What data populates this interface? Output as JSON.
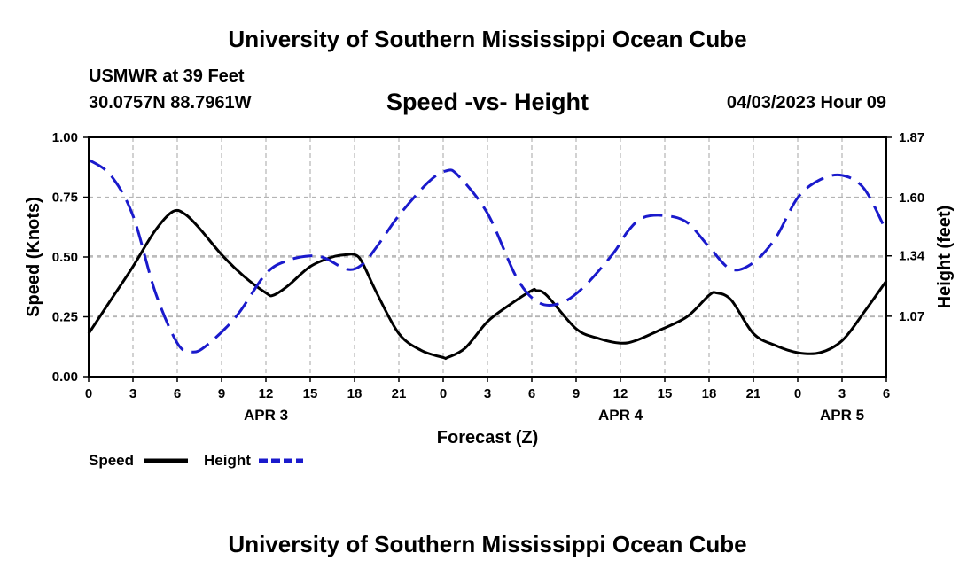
{
  "header": {
    "main_title": "University of Southern Mississippi Ocean Cube",
    "station": "USMWR at 39 Feet",
    "coords": "30.0757N  88.7961W",
    "chart_title": "Speed -vs- Height",
    "date": "04/03/2023 Hour 09",
    "bottom_title": "University of Southern Mississippi Ocean Cube"
  },
  "chart_data": {
    "type": "line",
    "title": "Speed -vs- Height",
    "xlabel": "Forecast (Z)",
    "ylabel": "Speed (Knots)",
    "y2label": "Height (feet)",
    "xlim": [
      0,
      54
    ],
    "ylim": [
      0,
      1
    ],
    "y2lim": [
      0.8,
      1.87
    ],
    "x_ticks": [
      0,
      3,
      6,
      9,
      12,
      15,
      18,
      21,
      24,
      27,
      30,
      33,
      36,
      39,
      42,
      45,
      48,
      51,
      54
    ],
    "x_tick_labels": [
      "0",
      "3",
      "6",
      "9",
      "12",
      "15",
      "18",
      "21",
      "0",
      "3",
      "6",
      "9",
      "12",
      "15",
      "18",
      "21",
      "0",
      "3",
      "6"
    ],
    "y_ticks": [
      0,
      0.25,
      0.5,
      0.75,
      1.0
    ],
    "y_tick_labels": [
      "0.00",
      "0.25",
      "0.50",
      "0.75",
      "1.00"
    ],
    "y2_ticks": [
      1.07,
      1.34,
      1.6,
      1.87
    ],
    "y2_tick_labels": [
      "1.07",
      "1.34",
      "1.60",
      "1.87"
    ],
    "date_labels": [
      {
        "x": 12,
        "label": "APR 3"
      },
      {
        "x": 36,
        "label": "APR 4"
      },
      {
        "x": 51,
        "label": "APR 5"
      }
    ],
    "grid": true,
    "legend_position": "bottom-left",
    "colors": {
      "speed": "#000000",
      "height": "#1a1acc",
      "grid": "#b4b4b4"
    },
    "series": [
      {
        "name": "Speed",
        "axis": "left",
        "style": "solid",
        "x": [
          0,
          1.5,
          3,
          4.5,
          5.7,
          6.5,
          7.5,
          9,
          10.5,
          12,
          12.5,
          13.5,
          15,
          16.5,
          17.5,
          18,
          18.5,
          19.5,
          21,
          22.5,
          24,
          24.3,
          25.5,
          27,
          28.5,
          30,
          30.3,
          31,
          33,
          34.5,
          36,
          37,
          38.5,
          40.5,
          42,
          42.5,
          43.5,
          45,
          46.5,
          48,
          49.5,
          51,
          52.5,
          54
        ],
        "values": [
          0.18,
          0.32,
          0.46,
          0.61,
          0.69,
          0.68,
          0.62,
          0.51,
          0.42,
          0.35,
          0.34,
          0.38,
          0.46,
          0.5,
          0.51,
          0.51,
          0.48,
          0.35,
          0.18,
          0.11,
          0.08,
          0.08,
          0.12,
          0.23,
          0.3,
          0.36,
          0.36,
          0.34,
          0.2,
          0.16,
          0.14,
          0.15,
          0.19,
          0.25,
          0.34,
          0.35,
          0.32,
          0.18,
          0.13,
          0.1,
          0.1,
          0.15,
          0.27,
          0.4
        ]
      },
      {
        "name": "Height",
        "axis": "right",
        "style": "dashed",
        "x": [
          0,
          1.5,
          3,
          4.5,
          6,
          7,
          8,
          10,
          12,
          13.5,
          15,
          16,
          17.5,
          18.5,
          19.5,
          21,
          23,
          24.2,
          25,
          27,
          29,
          30.5,
          32,
          33.5,
          35.5,
          36.5,
          37.5,
          39,
          40.5,
          42,
          43.5,
          45,
          46.5,
          48,
          49.5,
          51,
          52.5,
          54
        ],
        "values": [
          1.77,
          1.7,
          1.52,
          1.18,
          0.95,
          0.91,
          0.94,
          1.07,
          1.26,
          1.32,
          1.34,
          1.33,
          1.28,
          1.3,
          1.38,
          1.52,
          1.67,
          1.72,
          1.7,
          1.53,
          1.24,
          1.13,
          1.13,
          1.2,
          1.35,
          1.45,
          1.51,
          1.52,
          1.49,
          1.38,
          1.28,
          1.31,
          1.42,
          1.6,
          1.68,
          1.7,
          1.64,
          1.45
        ]
      }
    ]
  }
}
